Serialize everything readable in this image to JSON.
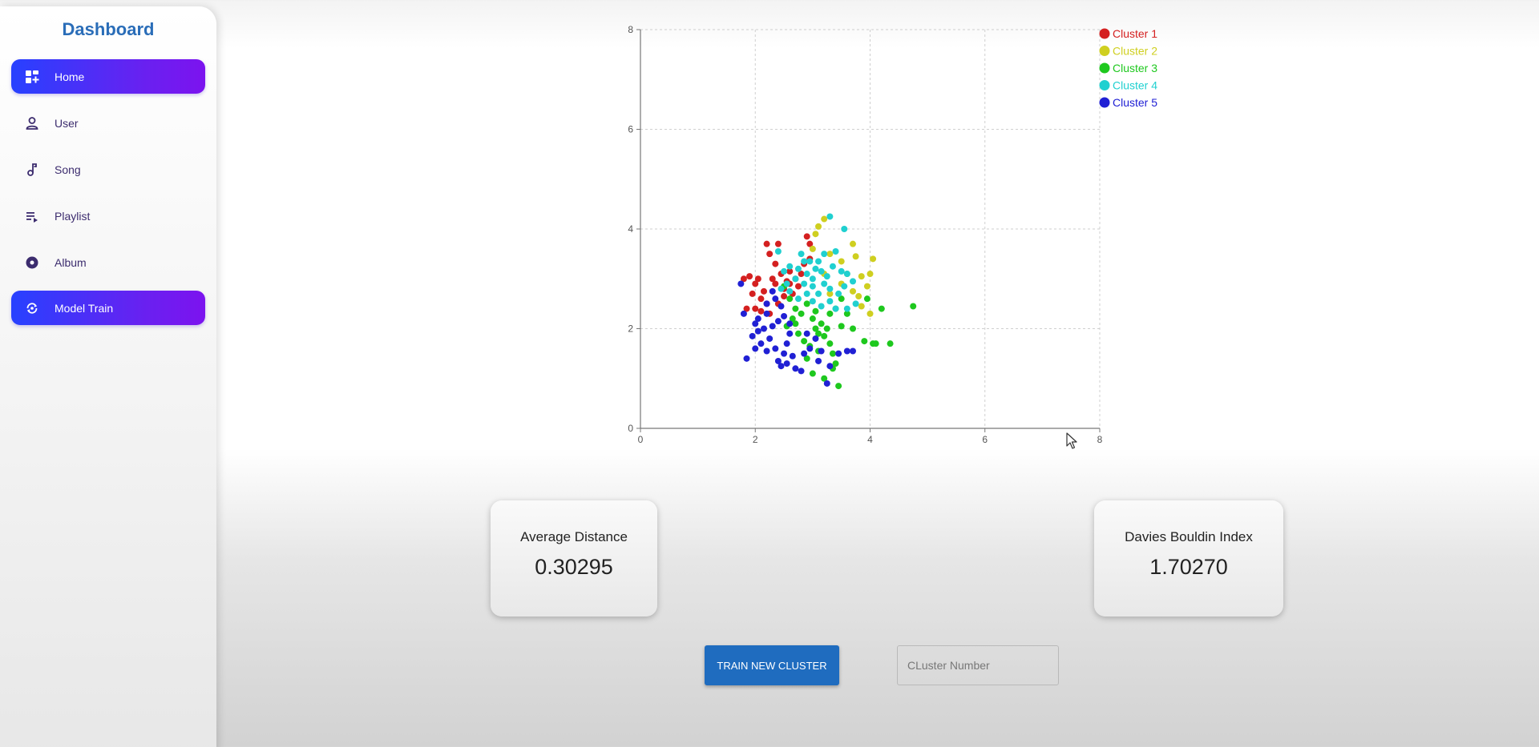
{
  "sidebar": {
    "title": "Dashboard",
    "items": [
      {
        "label": "Home",
        "icon": "dashboard-icon",
        "active": true
      },
      {
        "label": "User",
        "icon": "person-icon",
        "active": false
      },
      {
        "label": "Song",
        "icon": "music-note-icon",
        "active": false
      },
      {
        "label": "Playlist",
        "icon": "playlist-icon",
        "active": false
      },
      {
        "label": "Album",
        "icon": "album-icon",
        "active": false
      },
      {
        "label": "Model Train",
        "icon": "model-train-icon",
        "active": true
      }
    ]
  },
  "chart_data": {
    "type": "scatter",
    "xlim": [
      0,
      8
    ],
    "ylim": [
      0,
      8
    ],
    "x_ticks": [
      "0",
      "2",
      "4",
      "6",
      "8"
    ],
    "y_ticks": [
      "0",
      "2",
      "4",
      "6",
      "8"
    ],
    "grid": true,
    "legend_position": "top-right",
    "series": [
      {
        "name": "Cluster 1",
        "color": "#d42020",
        "points": [
          [
            1.8,
            3.0
          ],
          [
            1.9,
            3.05
          ],
          [
            2.0,
            2.9
          ],
          [
            2.05,
            3.0
          ],
          [
            1.95,
            2.7
          ],
          [
            2.1,
            2.6
          ],
          [
            2.15,
            2.75
          ],
          [
            2.2,
            3.7
          ],
          [
            2.25,
            3.5
          ],
          [
            2.4,
            3.7
          ],
          [
            2.35,
            3.3
          ],
          [
            2.3,
            3.0
          ],
          [
            2.45,
            3.1
          ],
          [
            2.5,
            2.8
          ],
          [
            2.55,
            2.95
          ],
          [
            2.6,
            2.9
          ],
          [
            2.1,
            2.35
          ],
          [
            2.2,
            2.5
          ],
          [
            2.25,
            2.3
          ],
          [
            2.0,
            2.4
          ],
          [
            2.65,
            2.7
          ],
          [
            2.7,
            3.0
          ],
          [
            2.6,
            3.15
          ],
          [
            2.8,
            3.1
          ],
          [
            2.85,
            3.3
          ],
          [
            2.95,
            3.4
          ],
          [
            2.9,
            3.85
          ],
          [
            2.95,
            3.7
          ],
          [
            1.85,
            2.4
          ],
          [
            2.4,
            2.5
          ],
          [
            2.5,
            2.65
          ],
          [
            2.35,
            2.9
          ],
          [
            2.75,
            2.85
          ]
        ]
      },
      {
        "name": "Cluster 2",
        "color": "#cfcf20",
        "points": [
          [
            3.1,
            4.05
          ],
          [
            3.2,
            4.2
          ],
          [
            3.05,
            3.9
          ],
          [
            3.0,
            3.6
          ],
          [
            3.3,
            3.5
          ],
          [
            3.7,
            3.7
          ],
          [
            3.75,
            3.45
          ],
          [
            4.05,
            3.4
          ],
          [
            3.5,
            3.35
          ],
          [
            3.6,
            3.1
          ],
          [
            3.85,
            3.05
          ],
          [
            4.0,
            3.1
          ],
          [
            3.95,
            2.85
          ],
          [
            3.8,
            2.65
          ],
          [
            3.7,
            2.75
          ],
          [
            3.85,
            2.45
          ],
          [
            4.0,
            2.3
          ],
          [
            3.5,
            2.9
          ],
          [
            3.3,
            2.7
          ],
          [
            3.2,
            3.1
          ]
        ]
      },
      {
        "name": "Cluster 3",
        "color": "#1ec81e",
        "points": [
          [
            2.5,
            2.85
          ],
          [
            2.6,
            2.6
          ],
          [
            2.7,
            2.4
          ],
          [
            2.8,
            2.3
          ],
          [
            2.9,
            2.5
          ],
          [
            3.0,
            2.2
          ],
          [
            3.05,
            2.0
          ],
          [
            3.1,
            1.9
          ],
          [
            3.15,
            2.1
          ],
          [
            3.2,
            1.85
          ],
          [
            3.25,
            2.0
          ],
          [
            3.3,
            1.7
          ],
          [
            3.35,
            1.5
          ],
          [
            3.4,
            1.3
          ],
          [
            3.35,
            1.2
          ],
          [
            3.0,
            1.1
          ],
          [
            2.9,
            1.4
          ],
          [
            2.85,
            1.75
          ],
          [
            2.75,
            1.9
          ],
          [
            2.7,
            2.1
          ],
          [
            2.95,
            1.65
          ],
          [
            3.1,
            1.55
          ],
          [
            3.4,
            2.4
          ],
          [
            3.5,
            2.6
          ],
          [
            3.6,
            2.3
          ],
          [
            3.7,
            2.0
          ],
          [
            3.9,
            1.75
          ],
          [
            4.05,
            1.7
          ],
          [
            4.1,
            1.7
          ],
          [
            4.35,
            1.7
          ],
          [
            4.2,
            2.4
          ],
          [
            4.75,
            2.45
          ],
          [
            3.95,
            2.6
          ],
          [
            3.45,
            0.85
          ],
          [
            3.2,
            1.0
          ],
          [
            3.05,
            2.35
          ],
          [
            2.65,
            2.2
          ],
          [
            3.3,
            2.3
          ],
          [
            2.55,
            2.05
          ],
          [
            3.5,
            2.05
          ]
        ]
      },
      {
        "name": "Cluster 4",
        "color": "#20d0d0",
        "points": [
          [
            3.3,
            4.25
          ],
          [
            3.55,
            4.0
          ],
          [
            3.4,
            3.55
          ],
          [
            3.2,
            3.5
          ],
          [
            3.1,
            3.35
          ],
          [
            2.95,
            3.35
          ],
          [
            2.8,
            3.5
          ],
          [
            2.75,
            3.2
          ],
          [
            2.6,
            3.25
          ],
          [
            2.5,
            3.15
          ],
          [
            2.4,
            3.55
          ],
          [
            2.7,
            3.0
          ],
          [
            2.85,
            2.9
          ],
          [
            3.0,
            2.85
          ],
          [
            3.1,
            2.7
          ],
          [
            3.2,
            2.9
          ],
          [
            3.25,
            3.05
          ],
          [
            3.35,
            3.25
          ],
          [
            3.5,
            3.15
          ],
          [
            3.6,
            3.1
          ],
          [
            3.7,
            2.95
          ],
          [
            3.55,
            2.85
          ],
          [
            3.45,
            2.7
          ],
          [
            3.3,
            2.55
          ],
          [
            3.15,
            2.45
          ],
          [
            3.0,
            2.55
          ],
          [
            2.9,
            2.7
          ],
          [
            2.75,
            2.6
          ],
          [
            2.6,
            2.75
          ],
          [
            2.55,
            2.9
          ],
          [
            2.45,
            2.8
          ],
          [
            3.4,
            2.4
          ],
          [
            3.75,
            2.5
          ],
          [
            3.6,
            2.4
          ],
          [
            2.9,
            3.1
          ],
          [
            3.05,
            3.2
          ],
          [
            3.15,
            3.15
          ],
          [
            2.85,
            3.35
          ],
          [
            3.0,
            3.0
          ],
          [
            3.3,
            2.8
          ]
        ]
      },
      {
        "name": "Cluster 5",
        "color": "#2020d4",
        "points": [
          [
            1.75,
            2.9
          ],
          [
            1.8,
            2.3
          ],
          [
            2.0,
            2.1
          ],
          [
            1.95,
            1.85
          ],
          [
            2.05,
            1.95
          ],
          [
            2.1,
            1.7
          ],
          [
            1.85,
            1.4
          ],
          [
            2.2,
            1.55
          ],
          [
            2.25,
            1.8
          ],
          [
            2.3,
            2.05
          ],
          [
            2.35,
            1.6
          ],
          [
            2.4,
            1.35
          ],
          [
            2.45,
            1.25
          ],
          [
            2.5,
            1.5
          ],
          [
            2.55,
            1.7
          ],
          [
            2.6,
            1.9
          ],
          [
            2.65,
            1.45
          ],
          [
            2.7,
            1.2
          ],
          [
            2.8,
            1.15
          ],
          [
            2.85,
            1.5
          ],
          [
            2.95,
            1.6
          ],
          [
            3.05,
            1.8
          ],
          [
            3.15,
            1.55
          ],
          [
            3.3,
            1.25
          ],
          [
            3.25,
            0.9
          ],
          [
            3.45,
            1.5
          ],
          [
            3.6,
            1.55
          ],
          [
            3.7,
            1.55
          ],
          [
            2.2,
            2.3
          ],
          [
            2.35,
            2.6
          ],
          [
            2.45,
            2.45
          ],
          [
            2.5,
            2.25
          ],
          [
            2.6,
            2.1
          ],
          [
            2.3,
            2.75
          ],
          [
            2.2,
            2.5
          ],
          [
            2.05,
            2.2
          ],
          [
            2.0,
            1.6
          ],
          [
            2.15,
            2.0
          ],
          [
            2.4,
            2.15
          ],
          [
            2.55,
            1.3
          ],
          [
            2.9,
            1.9
          ],
          [
            3.1,
            1.35
          ]
        ]
      }
    ]
  },
  "metrics": {
    "avg_distance": {
      "label": "Average Distance",
      "value": "0.30295"
    },
    "davies_bouldin": {
      "label": "Davies Bouldin Index",
      "value": "1.70270"
    }
  },
  "actions": {
    "train_label": "TRAIN NEW CLUSTER",
    "cluster_placeholder": "CLuster Number"
  }
}
